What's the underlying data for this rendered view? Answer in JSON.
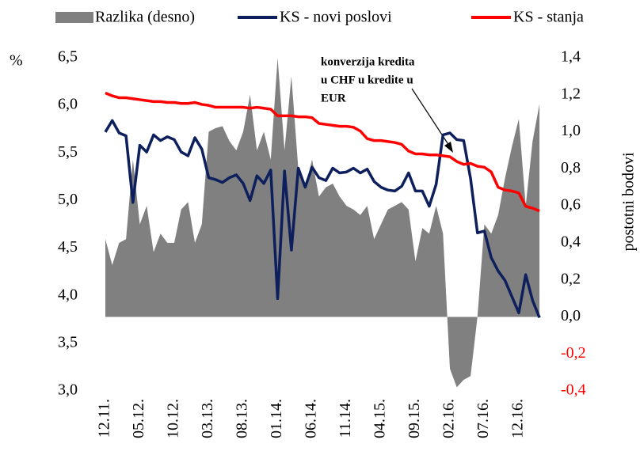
{
  "chart_data": {
    "type": "line",
    "y_label": "%",
    "y2_label": "postotni bodovi",
    "annotation": [
      "konverzija kredita",
      "u CHF u kredite u",
      "EUR"
    ],
    "categories": [
      "12.11.",
      null,
      null,
      null,
      null,
      "05.12.",
      null,
      null,
      null,
      null,
      "10.12.",
      null,
      null,
      null,
      null,
      "03.13.",
      null,
      null,
      null,
      null,
      "08.13.",
      null,
      null,
      null,
      null,
      "01.14.",
      null,
      null,
      null,
      null,
      "06.14.",
      null,
      null,
      null,
      null,
      "11.14.",
      null,
      null,
      null,
      null,
      "04.15.",
      null,
      null,
      null,
      null,
      "09.15.",
      null,
      null,
      null,
      null,
      "02.16.",
      null,
      null,
      null,
      null,
      "07.16.",
      null,
      null,
      null,
      null,
      "12.16.",
      null,
      null,
      null
    ],
    "series": [
      {
        "name": "Razlika (desno)",
        "kind": "area",
        "axis": "y2",
        "color": "#808080",
        "values": [
          0.42,
          0.28,
          0.4,
          0.42,
          0.85,
          0.5,
          0.6,
          0.35,
          0.45,
          0.4,
          0.4,
          0.58,
          0.62,
          0.4,
          0.5,
          1.0,
          1.02,
          1.03,
          0.95,
          0.9,
          1.0,
          1.2,
          0.9,
          1.0,
          0.85,
          1.4,
          0.9,
          1.3,
          0.8,
          0.7,
          0.85,
          0.65,
          0.7,
          0.72,
          0.65,
          0.6,
          0.58,
          0.55,
          0.6,
          0.42,
          0.5,
          0.58,
          0.6,
          0.62,
          0.58,
          0.3,
          0.48,
          0.45,
          0.6,
          0.45,
          -0.28,
          -0.38,
          -0.34,
          -0.32,
          0.0,
          0.5,
          0.45,
          0.55,
          0.75,
          0.92,
          1.07,
          0.6,
          0.95,
          1.15
        ]
      },
      {
        "name": "KS - novi poslovi",
        "kind": "line",
        "color": "#0d1f5c",
        "values": [
          5.72,
          5.84,
          5.71,
          5.68,
          4.98,
          5.58,
          5.51,
          5.69,
          5.63,
          5.67,
          5.64,
          5.51,
          5.47,
          5.66,
          5.54,
          5.24,
          5.22,
          5.19,
          5.24,
          5.27,
          5.18,
          5.0,
          5.26,
          5.18,
          5.32,
          3.97,
          5.31,
          4.48,
          5.34,
          5.14,
          5.35,
          5.24,
          5.21,
          5.34,
          5.29,
          5.3,
          5.34,
          5.29,
          5.33,
          5.2,
          5.14,
          5.11,
          5.1,
          5.15,
          5.29,
          5.1,
          5.1,
          4.94,
          5.17,
          5.69,
          5.71,
          5.64,
          5.63,
          5.23,
          4.66,
          4.68,
          4.4,
          4.26,
          4.16,
          3.99,
          3.82,
          4.22,
          3.95,
          3.77
        ]
      },
      {
        "name": "KS - stanja",
        "kind": "line",
        "color": "#ff0000",
        "values": [
          6.13,
          6.1,
          6.08,
          6.08,
          6.07,
          6.06,
          6.05,
          6.04,
          6.04,
          6.03,
          6.03,
          6.02,
          6.02,
          6.03,
          6.01,
          6.0,
          5.98,
          5.98,
          5.98,
          5.98,
          5.98,
          5.97,
          5.98,
          5.97,
          5.96,
          5.89,
          5.89,
          5.89,
          5.88,
          5.88,
          5.87,
          5.81,
          5.8,
          5.79,
          5.78,
          5.78,
          5.77,
          5.73,
          5.65,
          5.63,
          5.63,
          5.62,
          5.61,
          5.59,
          5.52,
          5.49,
          5.49,
          5.48,
          5.48,
          5.47,
          5.46,
          5.41,
          5.38,
          5.39,
          5.36,
          5.35,
          5.3,
          5.14,
          5.11,
          5.1,
          5.08,
          4.94,
          4.92,
          4.89
        ]
      }
    ],
    "ylim": [
      3.0,
      6.5
    ],
    "yticks": [
      {
        "value": 3.0,
        "label": "3,0"
      },
      {
        "value": 3.5,
        "label": "3,5"
      },
      {
        "value": 4.0,
        "label": "4,0"
      },
      {
        "value": 4.5,
        "label": "4,5"
      },
      {
        "value": 5.0,
        "label": "5,0"
      },
      {
        "value": 5.5,
        "label": "5,5"
      },
      {
        "value": 6.0,
        "label": "6,0"
      },
      {
        "value": 6.5,
        "label": "6,5"
      }
    ],
    "y2lim": [
      -0.4,
      1.4
    ],
    "y2ticks": [
      {
        "value": -0.4,
        "label": "-0,4"
      },
      {
        "value": -0.2,
        "label": "-0,2"
      },
      {
        "value": 0,
        "label": "0,0"
      },
      {
        "value": 0.2,
        "label": "0,2"
      },
      {
        "value": 0.4,
        "label": "0,4"
      },
      {
        "value": 0.6,
        "label": "0,6"
      },
      {
        "value": 0.8,
        "label": "0,8"
      },
      {
        "value": 1.0,
        "label": "1,0"
      },
      {
        "value": 1.2,
        "label": "1,2"
      },
      {
        "value": 1.4,
        "label": "1,4"
      }
    ],
    "negative_tick_color": "#ff0000",
    "legend": "top",
    "grid": false
  }
}
